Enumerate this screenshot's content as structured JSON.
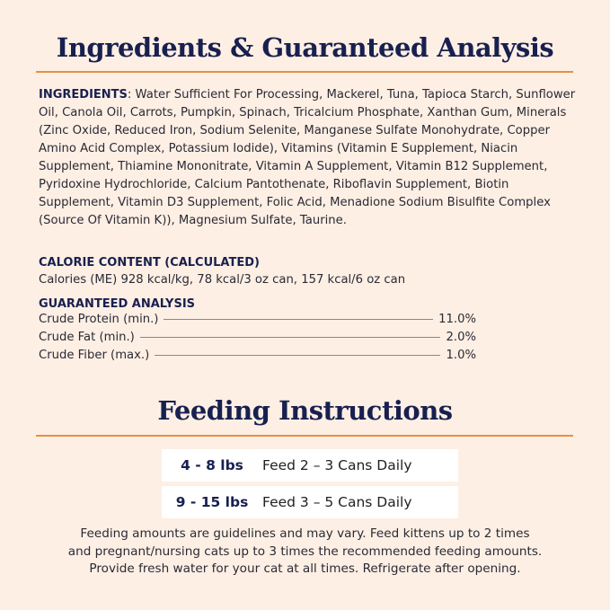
{
  "analysis_title": "Ingredients & Guaranteed Analysis",
  "ingredients": {
    "label": "INGREDIENTS",
    "text": ": Water Sufficient For Processing, Mackerel, Tuna, Tapioca Starch, Sunflower Oil, Canola Oil, Carrots, Pumpkin, Spinach, Tricalcium Phosphate, Xanthan Gum, Minerals (Zinc Oxide, Reduced Iron, Sodium Selenite, Manganese Sulfate Monohydrate, Copper Amino Acid Complex, Potassium Iodide), Vitamins (Vitamin E Supplement, Niacin Supplement, Thiamine Mononitrate, Vitamin A Supplement, Vitamin B12 Supplement, Pyridoxine Hydrochloride, Calcium Pantoth­enate, Riboflavin Supplement, Biotin Supplement, Vitamin D3 Supplement, Folic Acid, Menadione Sodium Bisulfite Complex (Source Of Vitamin K)), Magnesium Sulfate, Taurine."
  },
  "calorie": {
    "label": "CALORIE CONTENT (CALCULATED)",
    "text": "Calories (ME) 928 kcal/kg, 78 kcal/3 oz can, 157 kcal/6 oz can"
  },
  "guaranteed": {
    "label": "GUARANTEED ANALYSIS",
    "rows": [
      {
        "name": "Crude Protein (min.)",
        "value": "11.0%"
      },
      {
        "name": "Crude Fat (min.)",
        "value": "2.0%"
      },
      {
        "name": "Crude Fiber (max.)",
        "value": "1.0%"
      }
    ]
  },
  "feeding_title": "Feeding Instructions",
  "feeding": [
    {
      "weight": "4 - 8 lbs",
      "amount": "Feed 2 – 3 Cans Daily"
    },
    {
      "weight": "9 - 15 lbs",
      "amount": "Feed 3 –  5 Cans Daily"
    }
  ],
  "footer": [
    "Feeding amounts are guidelines and may vary. Feed kittens up to 2 times",
    "and pregnant/nursing cats up to 3 times the recommended feeding amounts.",
    "Provide fresh water for your cat at all times. Refrigerate after opening."
  ],
  "colors": {
    "background": "#fdefe4",
    "navy": "#18204f",
    "accent": "#e39143"
  }
}
